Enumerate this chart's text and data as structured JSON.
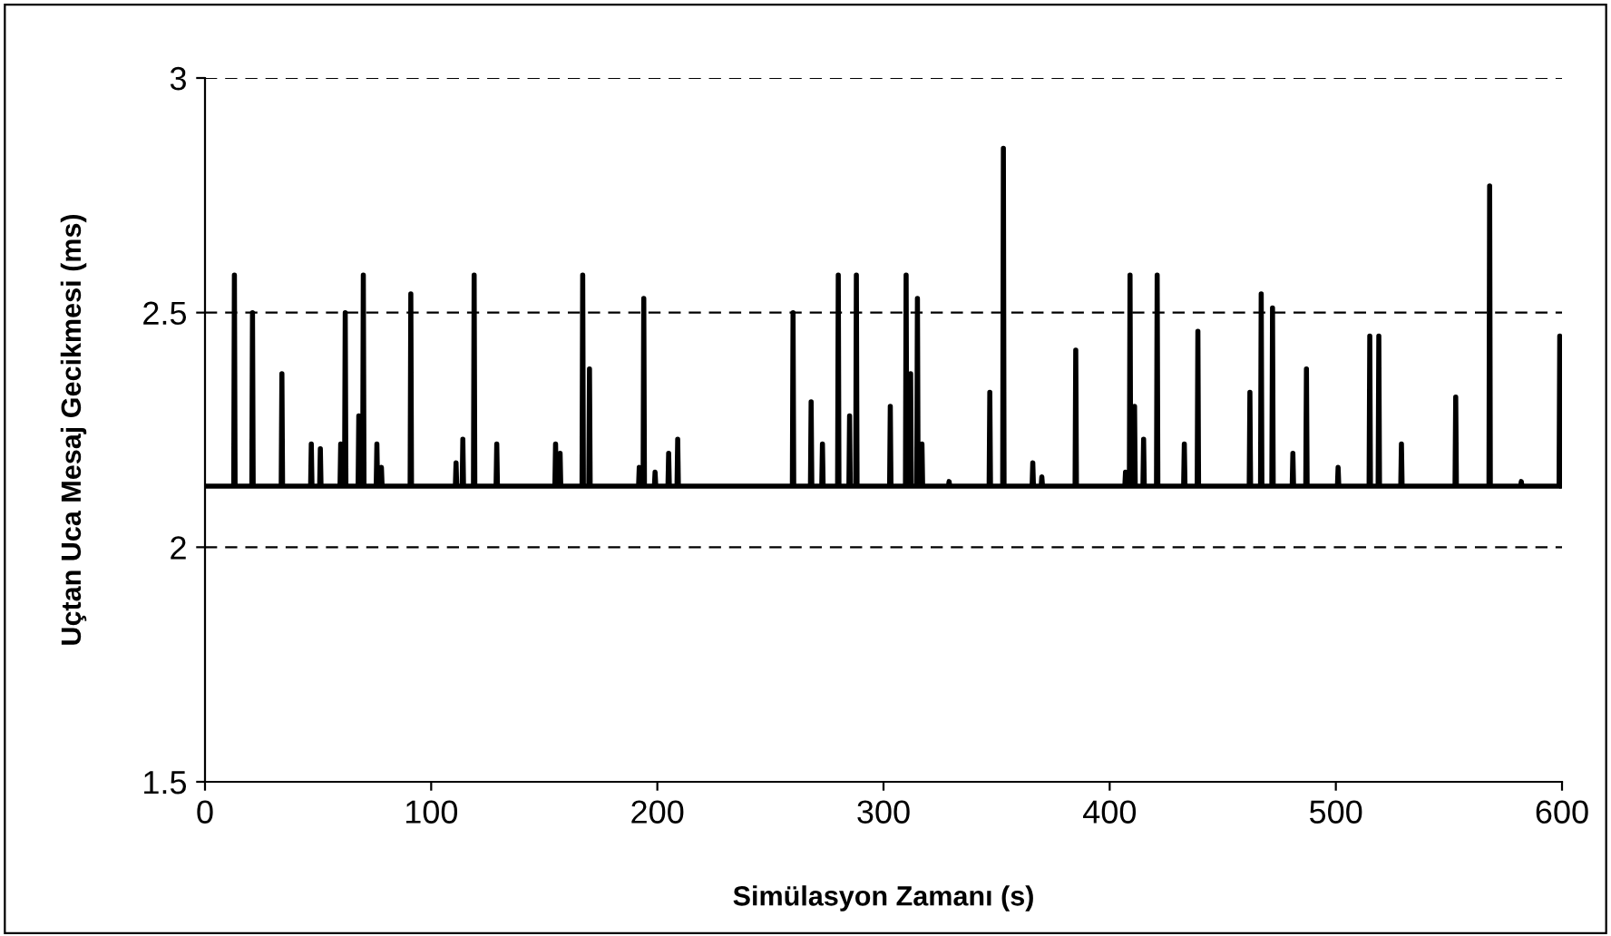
{
  "chart_data": {
    "type": "line",
    "xlabel": "Simülasyon Zamanı (s)",
    "ylabel": "Uçtan Uca Mesaj Gecikmesi (ms)",
    "xlim": [
      0,
      600
    ],
    "xticks": [
      0,
      100,
      200,
      300,
      400,
      500,
      600
    ],
    "ylim": [
      1.5,
      3
    ],
    "yticks": [
      1.5,
      2,
      2.5,
      3
    ],
    "grid": "y",
    "marker": "none",
    "line_style": "solid",
    "series": [
      {
        "color": "#000000",
        "x": [
          0,
          12.7,
          13,
          13.3,
          20.7,
          21,
          21.3,
          33.7,
          34,
          34.3,
          46.7,
          47,
          47.3,
          50.7,
          51,
          51.3,
          59.7,
          60,
          60.3,
          61.7,
          62,
          62.3,
          67.7,
          68,
          68.3,
          69.7,
          70,
          70.3,
          75.7,
          76,
          76.3,
          77.7,
          78,
          78.3,
          90.7,
          91,
          91.3,
          110.7,
          111,
          111.3,
          113.7,
          114,
          114.3,
          118.7,
          119,
          119.3,
          128.7,
          129,
          129.3,
          154.7,
          155,
          155.3,
          156.7,
          157,
          157.3,
          166.7,
          167,
          167.3,
          169.7,
          170,
          170.3,
          191.7,
          192,
          192.3,
          193.7,
          194,
          194.3,
          198.7,
          199,
          199.3,
          204.7,
          205,
          205.3,
          208.7,
          209,
          209.3,
          259.7,
          260,
          260.3,
          267.7,
          268,
          268.3,
          272.7,
          273,
          273.3,
          279.7,
          280,
          280.3,
          284.7,
          285,
          285.3,
          287.7,
          288,
          288.3,
          302.7,
          303,
          303.3,
          309.7,
          310,
          310.3,
          311.7,
          312,
          312.3,
          314.7,
          315,
          315.3,
          316.7,
          317,
          317.3,
          328.7,
          329,
          329.3,
          346.7,
          347,
          347.3,
          352.7,
          353,
          353.3,
          365.7,
          366,
          366.3,
          369.7,
          370,
          370.3,
          384.7,
          385,
          385.3,
          406.7,
          407,
          407.3,
          408.7,
          409,
          409.3,
          410.7,
          411,
          411.3,
          414.7,
          415,
          415.3,
          420.7,
          421,
          421.3,
          432.7,
          433,
          433.3,
          438.7,
          439,
          439.3,
          461.7,
          462,
          462.3,
          466.7,
          467,
          467.3,
          471.7,
          472,
          472.3,
          480.7,
          481,
          481.3,
          486.7,
          487,
          487.3,
          500.7,
          501,
          501.3,
          514.7,
          515,
          515.3,
          518.7,
          519,
          519.3,
          528.7,
          529,
          529.3,
          552.7,
          553,
          553.3,
          567.7,
          568,
          568.3,
          581.7,
          582,
          582.3,
          598.7,
          599,
          600
        ],
        "values": [
          2.13,
          2.13,
          2.58,
          2.13,
          2.13,
          2.5,
          2.13,
          2.13,
          2.37,
          2.13,
          2.13,
          2.22,
          2.13,
          2.13,
          2.21,
          2.13,
          2.13,
          2.22,
          2.13,
          2.13,
          2.5,
          2.13,
          2.13,
          2.28,
          2.13,
          2.13,
          2.58,
          2.13,
          2.13,
          2.22,
          2.13,
          2.13,
          2.17,
          2.13,
          2.13,
          2.54,
          2.13,
          2.13,
          2.18,
          2.13,
          2.13,
          2.23,
          2.13,
          2.13,
          2.58,
          2.13,
          2.13,
          2.22,
          2.13,
          2.13,
          2.22,
          2.13,
          2.13,
          2.2,
          2.13,
          2.13,
          2.58,
          2.13,
          2.13,
          2.38,
          2.13,
          2.13,
          2.17,
          2.13,
          2.13,
          2.53,
          2.13,
          2.13,
          2.16,
          2.13,
          2.13,
          2.2,
          2.13,
          2.13,
          2.23,
          2.13,
          2.13,
          2.5,
          2.13,
          2.13,
          2.31,
          2.13,
          2.13,
          2.22,
          2.13,
          2.13,
          2.58,
          2.13,
          2.13,
          2.28,
          2.13,
          2.13,
          2.58,
          2.13,
          2.13,
          2.3,
          2.13,
          2.13,
          2.58,
          2.13,
          2.13,
          2.37,
          2.13,
          2.13,
          2.53,
          2.13,
          2.13,
          2.22,
          2.13,
          2.13,
          2.14,
          2.13,
          2.13,
          2.33,
          2.13,
          2.13,
          2.85,
          2.13,
          2.13,
          2.18,
          2.13,
          2.13,
          2.15,
          2.13,
          2.13,
          2.42,
          2.13,
          2.13,
          2.16,
          2.13,
          2.13,
          2.58,
          2.13,
          2.13,
          2.3,
          2.13,
          2.13,
          2.23,
          2.13,
          2.13,
          2.58,
          2.13,
          2.13,
          2.22,
          2.13,
          2.13,
          2.46,
          2.13,
          2.13,
          2.33,
          2.13,
          2.13,
          2.54,
          2.13,
          2.13,
          2.51,
          2.13,
          2.13,
          2.2,
          2.13,
          2.13,
          2.38,
          2.13,
          2.13,
          2.17,
          2.13,
          2.13,
          2.45,
          2.13,
          2.13,
          2.45,
          2.13,
          2.13,
          2.22,
          2.13,
          2.13,
          2.32,
          2.13,
          2.13,
          2.77,
          2.13,
          2.13,
          2.14,
          2.13,
          2.13,
          2.45,
          2.13
        ]
      }
    ]
  }
}
